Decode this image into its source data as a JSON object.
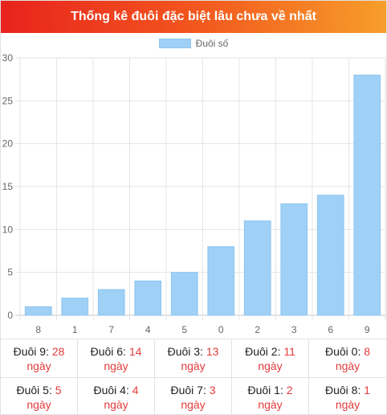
{
  "header": {
    "title": "Thống kê đuôi đặc biệt lâu chưa về nhất"
  },
  "colors": {
    "bar": "#9fd0f5",
    "bar_border": "#8fc6f0",
    "header_start": "#e8231d",
    "header_end": "#f79e2a",
    "days": "#e23b3b"
  },
  "chart_data": {
    "type": "bar",
    "categories": [
      "8",
      "1",
      "7",
      "4",
      "5",
      "0",
      "2",
      "3",
      "6",
      "9"
    ],
    "series": [
      {
        "name": "Đuôi số",
        "values": [
          1,
          2,
          3,
          4,
          5,
          8,
          11,
          13,
          14,
          28
        ]
      }
    ],
    "ylim": [
      0,
      30
    ],
    "yticks": [
      "0",
      "5",
      "10",
      "15",
      "20",
      "25",
      "30"
    ],
    "grid": true,
    "legend": "top-center"
  },
  "stats": [
    {
      "label": "Đuôi 9:",
      "value": "28",
      "unit": "ngày"
    },
    {
      "label": "Đuôi 6:",
      "value": "14",
      "unit": "ngày"
    },
    {
      "label": "Đuôi 3:",
      "value": "13",
      "unit": "ngày"
    },
    {
      "label": "Đuôi 2:",
      "value": "11",
      "unit": "ngày"
    },
    {
      "label": "Đuôi 0:",
      "value": "8",
      "unit": "ngày"
    },
    {
      "label": "Đuôi 5:",
      "value": "5",
      "unit": "ngày"
    },
    {
      "label": "Đuôi 4:",
      "value": "4",
      "unit": "ngày"
    },
    {
      "label": "Đuôi 7:",
      "value": "3",
      "unit": "ngày"
    },
    {
      "label": "Đuôi 1:",
      "value": "2",
      "unit": "ngày"
    },
    {
      "label": "Đuôi 8:",
      "value": "1",
      "unit": "ngày"
    }
  ]
}
